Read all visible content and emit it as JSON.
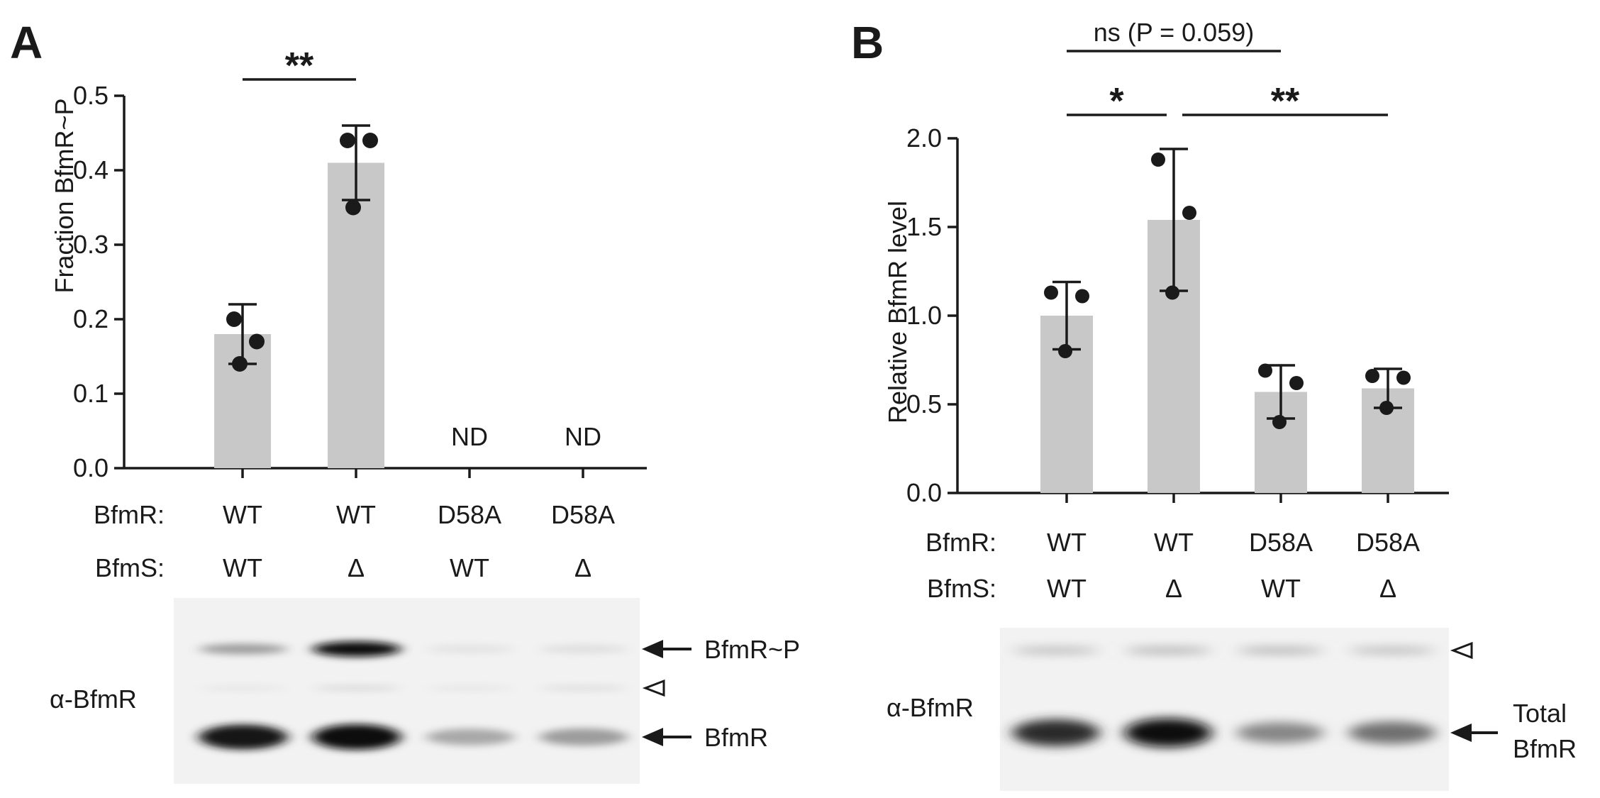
{
  "chart_data": [
    {
      "panel_label": "A",
      "type": "bar",
      "ylabel": "Fraction BfmR~P",
      "ylim": [
        0,
        0.5
      ],
      "yticks": [
        0.0,
        0.1,
        0.2,
        0.3,
        0.4,
        0.5
      ],
      "ytick_labels": [
        "0.0",
        "0.1",
        "0.2",
        "0.3",
        "0.4",
        "0.5"
      ],
      "row_labels": [
        "BfmR:",
        "BfmS:"
      ],
      "categories": [
        {
          "bfmr": "WT",
          "bfms": "WT",
          "mean": 0.18,
          "sd": 0.04,
          "points": [
            0.2,
            0.17,
            0.14
          ],
          "label": ""
        },
        {
          "bfmr": "WT",
          "bfms": "Δ",
          "mean": 0.41,
          "sd": 0.05,
          "points": [
            0.44,
            0.44,
            0.35
          ],
          "label": ""
        },
        {
          "bfmr": "D58A",
          "bfms": "WT",
          "mean": null,
          "sd": null,
          "points": [],
          "label": "ND"
        },
        {
          "bfmr": "D58A",
          "bfms": "Δ",
          "mean": null,
          "sd": null,
          "points": [],
          "label": "ND"
        }
      ],
      "significance": [
        {
          "from": 0,
          "to": 1,
          "label": "**"
        }
      ],
      "blot": {
        "antibody": "α-BfmR",
        "bands": [
          {
            "name": "BfmR~P",
            "marker": "arrow",
            "intensity": [
              0.35,
              1.0,
              0.04,
              0.06
            ]
          },
          {
            "name": "",
            "marker": "open-triangle",
            "intensity": [
              0.05,
              0.12,
              0.05,
              0.1
            ]
          },
          {
            "name": "BfmR",
            "marker": "arrow",
            "intensity": [
              0.95,
              1.0,
              0.3,
              0.35
            ]
          }
        ],
        "labels": [
          "BfmR~P",
          "BfmR"
        ]
      }
    },
    {
      "panel_label": "B",
      "type": "bar",
      "ylabel": "Relative BfmR level",
      "ylim": [
        0,
        2.0
      ],
      "yticks": [
        0.0,
        0.5,
        1.0,
        1.5,
        2.0
      ],
      "ytick_labels": [
        "0.0",
        "0.5",
        "1.0",
        "1.5",
        "2.0"
      ],
      "row_labels": [
        "BfmR:",
        "BfmS:"
      ],
      "categories": [
        {
          "bfmr": "WT",
          "bfms": "WT",
          "mean": 1.0,
          "sd": 0.19,
          "points": [
            1.13,
            1.11,
            0.8
          ],
          "label": ""
        },
        {
          "bfmr": "WT",
          "bfms": "Δ",
          "mean": 1.54,
          "sd": 0.4,
          "points": [
            1.88,
            1.58,
            1.13
          ],
          "label": ""
        },
        {
          "bfmr": "D58A",
          "bfms": "WT",
          "mean": 0.57,
          "sd": 0.15,
          "points": [
            0.69,
            0.62,
            0.4
          ],
          "label": ""
        },
        {
          "bfmr": "D58A",
          "bfms": "Δ",
          "mean": 0.59,
          "sd": 0.11,
          "points": [
            0.66,
            0.65,
            0.48
          ],
          "label": ""
        }
      ],
      "significance": [
        {
          "from": 0,
          "to": 1,
          "label": "*"
        },
        {
          "from": 1,
          "to": 3,
          "label": "**"
        },
        {
          "from": 0,
          "to": 2,
          "label": "ns (P = 0.059)"
        }
      ],
      "blot": {
        "antibody": "α-BfmR",
        "bands": [
          {
            "name": "",
            "marker": "open-triangle",
            "intensity": [
              0.25,
              0.28,
              0.28,
              0.25
            ]
          },
          {
            "name": "Total\nBfmR",
            "marker": "arrow",
            "intensity": [
              0.85,
              1.0,
              0.45,
              0.55
            ]
          }
        ],
        "labels": [
          "Total",
          "BfmR"
        ]
      }
    }
  ],
  "colors": {
    "bar": "#c8c8c8",
    "ink": "#1a1a1a",
    "blot_bg": "#f2f2f2"
  }
}
